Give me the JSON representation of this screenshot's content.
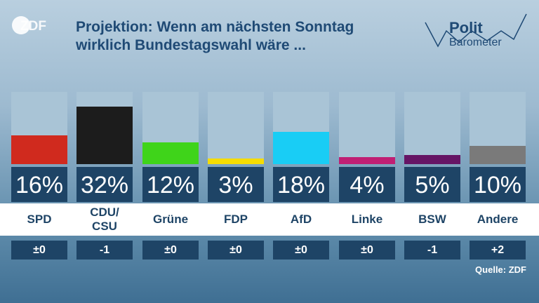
{
  "header": {
    "title_line1": "Projektion: Wenn am nächsten Sonntag",
    "title_line2": "wirklich Bundestagswahl wäre ...",
    "logo_left": "ZDF",
    "logo_right_top": "Polit",
    "logo_right_bottom": "Barometer"
  },
  "source": "Quelle: ZDF",
  "colors": {
    "track": "#a9c4d6",
    "box": "#1e4466",
    "title": "#1f4a75"
  },
  "chart_data": {
    "type": "bar",
    "ylim": [
      0,
      40
    ],
    "parties": [
      {
        "name_line1": "SPD",
        "name_line2": "",
        "value": 16,
        "pct_label": "16%",
        "change": "±0",
        "color": "#d02a1e"
      },
      {
        "name_line1": "CDU/",
        "name_line2": "CSU",
        "value": 32,
        "pct_label": "32%",
        "change": "-1",
        "color": "#1c1c1c"
      },
      {
        "name_line1": "Grüne",
        "name_line2": "",
        "value": 12,
        "pct_label": "12%",
        "change": "±0",
        "color": "#3fd41a"
      },
      {
        "name_line1": "FDP",
        "name_line2": "",
        "value": 3,
        "pct_label": "3%",
        "change": "±0",
        "color": "#f5dc00"
      },
      {
        "name_line1": "AfD",
        "name_line2": "",
        "value": 18,
        "pct_label": "18%",
        "change": "±0",
        "color": "#19cdf5"
      },
      {
        "name_line1": "Linke",
        "name_line2": "",
        "value": 4,
        "pct_label": "4%",
        "change": "±0",
        "color": "#c01f74"
      },
      {
        "name_line1": "BSW",
        "name_line2": "",
        "value": 5,
        "pct_label": "5%",
        "change": "-1",
        "color": "#661565"
      },
      {
        "name_line1": "Andere",
        "name_line2": "",
        "value": 10,
        "pct_label": "10%",
        "change": "+2",
        "color": "#7a7a7a"
      }
    ]
  }
}
